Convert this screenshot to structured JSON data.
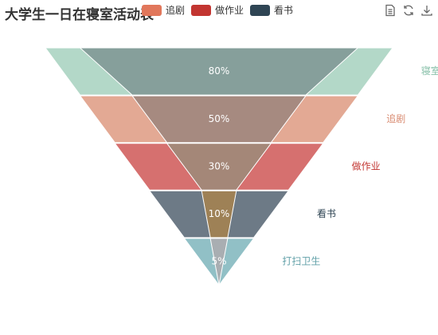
{
  "chart_data": {
    "type": "funnel",
    "title": "大学生一日在寝室活动表",
    "legend": {
      "placement": "top",
      "entries": [
        {
          "name": "追剧",
          "color": "#e1775b"
        },
        {
          "name": "做作业",
          "color": "#c23531"
        },
        {
          "name": "看书",
          "color": "#2f4554"
        }
      ]
    },
    "outer_series": {
      "name": "outer",
      "data": [
        {
          "name": "寝室打游戏",
          "value": 100,
          "color": "#b3d8c8"
        },
        {
          "name": "追剧",
          "value": 80,
          "color": "#e3a994"
        },
        {
          "name": "做作业",
          "value": 60,
          "color": "#d6706f"
        },
        {
          "name": "看书",
          "value": 40,
          "color": "#6d7a86"
        },
        {
          "name": "打扫卫生",
          "value": 20,
          "color": "#91c0c6"
        }
      ]
    },
    "inner_series": {
      "name": "inner",
      "data": [
        {
          "label": "80%",
          "value": 80,
          "color": "#869f9b"
        },
        {
          "label": "50%",
          "value": 50,
          "color": "#a68a80"
        },
        {
          "label": "30%",
          "value": 30,
          "color": "#a48778"
        },
        {
          "label": "10%",
          "value": 10,
          "color": "#9e8156"
        },
        {
          "label": "5%",
          "value": 5,
          "color": "#a9aeb2"
        }
      ]
    },
    "value_max": 100
  },
  "toolbox": {
    "icons": [
      "data-view-icon",
      "restore-icon",
      "save-image-icon"
    ]
  }
}
